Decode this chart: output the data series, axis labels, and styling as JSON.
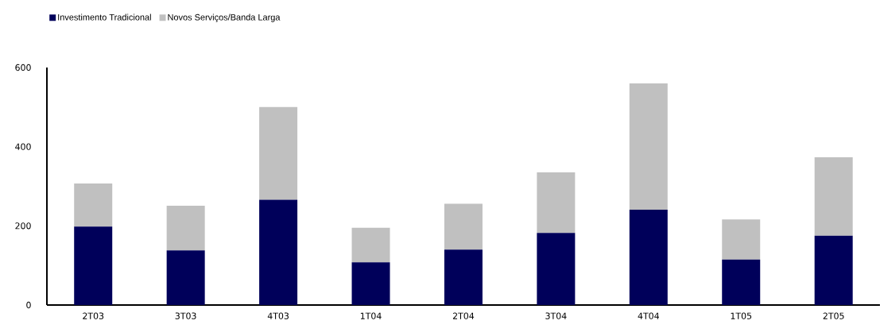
{
  "chart_data": {
    "type": "bar",
    "stacked": true,
    "categories": [
      "2T03",
      "3T03",
      "4T03",
      "1T04",
      "2T04",
      "3T04",
      "4T04",
      "1T05",
      "2T05"
    ],
    "series": [
      {
        "name": "Investimento Tradicional",
        "color": "#00005a",
        "values": [
          198,
          138,
          266,
          108,
          140,
          182,
          241,
          115,
          175
        ]
      },
      {
        "name": "Novos Serviços/Banda Larga",
        "color": "#c0c0c0",
        "values": [
          109,
          113,
          234,
          87,
          116,
          153,
          319,
          101,
          198
        ]
      }
    ],
    "ylim": [
      0,
      600
    ],
    "yticks": [
      0,
      200,
      400,
      600
    ],
    "grid": false,
    "legend": "top left"
  }
}
